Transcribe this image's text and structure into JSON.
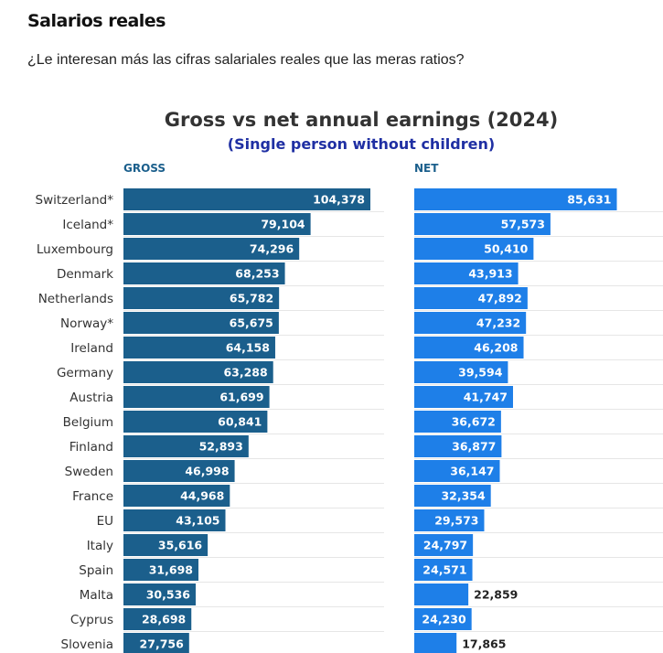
{
  "section": {
    "title": "Salarios reales",
    "subtitle": "¿Le interesan más las cifras salariales reales que las meras ratios?"
  },
  "chart_data": {
    "type": "bar",
    "orientation": "horizontal",
    "title": "Gross vs net annual earnings (2024)",
    "subtitle": "(Single person without children)",
    "categories": [
      "Switzerland*",
      "Iceland*",
      "Luxembourg",
      "Denmark",
      "Netherlands",
      "Norway*",
      "Ireland",
      "Germany",
      "Austria",
      "Belgium",
      "Finland",
      "Sweden",
      "France",
      "EU",
      "Italy",
      "Spain",
      "Malta",
      "Cyprus",
      "Slovenia"
    ],
    "series": [
      {
        "name": "GROSS",
        "color": "#1b5f8c",
        "values": [
          104378,
          79104,
          74296,
          68253,
          65782,
          65675,
          64158,
          63288,
          61699,
          60841,
          52893,
          46998,
          44968,
          43105,
          35616,
          31698,
          30536,
          28698,
          27756
        ],
        "labels": [
          "104,378",
          "79,104",
          "74,296",
          "68,253",
          "65,782",
          "65,675",
          "64,158",
          "63,288",
          "61,699",
          "60,841",
          "52,893",
          "46,998",
          "44,968",
          "43,105",
          "35,616",
          "31,698",
          "30,536",
          "28,698",
          "27,756"
        ]
      },
      {
        "name": "NET",
        "color": "#1e7fe8",
        "values": [
          85631,
          57573,
          50410,
          43913,
          47892,
          47232,
          46208,
          39594,
          41747,
          36672,
          36877,
          36147,
          32354,
          29573,
          24797,
          24571,
          22859,
          24230,
          17865
        ],
        "labels": [
          "85,631",
          "57,573",
          "50,410",
          "43,913",
          "47,892",
          "47,232",
          "46,208",
          "39,594",
          "41,747",
          "36,672",
          "36,877",
          "36,147",
          "32,354",
          "29,573",
          "24,797",
          "24,571",
          "22,859",
          "24,230",
          "17,865"
        ]
      }
    ],
    "grid": true,
    "legend": "panel headers"
  }
}
